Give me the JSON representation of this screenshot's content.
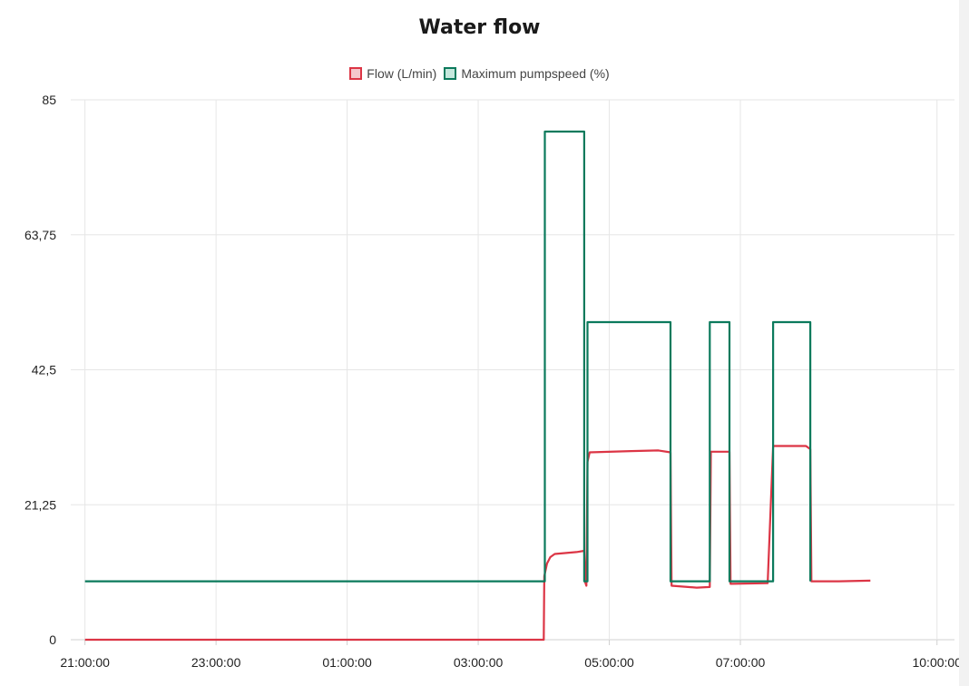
{
  "chart_data": {
    "type": "line",
    "title": "Water flow",
    "xlabel": "",
    "ylabel": "",
    "legend_placement": "top-center",
    "grid": true,
    "ylim": [
      0,
      85
    ],
    "yticks": [
      "0",
      "21,25",
      "42,5",
      "63,75",
      "85"
    ],
    "ytick_values": [
      0,
      21.25,
      42.5,
      63.75,
      85
    ],
    "xlim": [
      "20:47:00",
      "10:16:00"
    ],
    "xticks": [
      "21:00:00",
      "23:00:00",
      "01:00:00",
      "03:00:00",
      "05:00:00",
      "07:00:00",
      "10:00:00"
    ],
    "xtick_positions": [
      "21:00:00",
      "23:00:00",
      "01:00:00",
      "03:00:00",
      "05:00:00",
      "07:00:00",
      "10:00:00"
    ],
    "series": [
      {
        "name": "Flow (L/min)",
        "color": "#dc3545",
        "fill": "#f5c6cb",
        "points": [
          [
            "21:00:00",
            0
          ],
          [
            "04:00:00",
            0
          ],
          [
            "04:00:30",
            10
          ],
          [
            "04:03:00",
            12
          ],
          [
            "04:06:00",
            13
          ],
          [
            "04:10:00",
            13.5
          ],
          [
            "04:30:00",
            13.8
          ],
          [
            "04:37:00",
            14
          ],
          [
            "04:38:00",
            9
          ],
          [
            "04:39:00",
            8.5
          ],
          [
            "04:40:00",
            28
          ],
          [
            "04:42:00",
            29.5
          ],
          [
            "05:20:00",
            29.7
          ],
          [
            "05:45:00",
            29.8
          ],
          [
            "05:56:00",
            29.5
          ],
          [
            "05:57:00",
            8.5
          ],
          [
            "06:20:00",
            8.2
          ],
          [
            "06:32:00",
            8.3
          ],
          [
            "06:33:00",
            29.6
          ],
          [
            "06:50:00",
            29.6
          ],
          [
            "06:51:00",
            8.8
          ],
          [
            "07:25:00",
            8.9
          ],
          [
            "07:30:00",
            30.5
          ],
          [
            "08:00:00",
            30.5
          ],
          [
            "08:04:00",
            30.0
          ],
          [
            "08:05:00",
            9.2
          ],
          [
            "08:30:00",
            9.2
          ],
          [
            "08:59:00",
            9.3
          ]
        ]
      },
      {
        "name": "Maximum pumpspeed (%)",
        "color": "#0b7a5c",
        "fill": "#c5e8dd",
        "points": [
          [
            "21:00:00",
            9.2
          ],
          [
            "04:00:00",
            9.2
          ],
          [
            "04:01:00",
            9.2
          ],
          [
            "04:01:00",
            80
          ],
          [
            "04:37:00",
            80
          ],
          [
            "04:37:00",
            9.2
          ],
          [
            "04:40:00",
            9.2
          ],
          [
            "04:40:00",
            50
          ],
          [
            "05:56:00",
            50
          ],
          [
            "05:56:00",
            9.2
          ],
          [
            "06:32:00",
            9.2
          ],
          [
            "06:32:00",
            50
          ],
          [
            "06:50:00",
            50
          ],
          [
            "06:50:00",
            9.2
          ],
          [
            "07:30:00",
            9.2
          ],
          [
            "07:30:00",
            50
          ],
          [
            "08:04:00",
            50
          ],
          [
            "08:04:00",
            9.2
          ]
        ]
      }
    ]
  }
}
